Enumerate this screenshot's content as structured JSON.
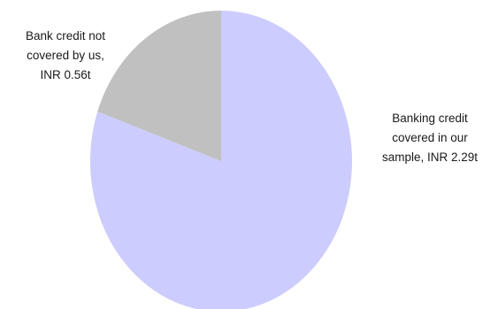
{
  "chart_data": {
    "type": "pie",
    "title": "",
    "start_angle_deg": 0,
    "direction": "clockwise",
    "slices": [
      {
        "label_lines": [
          "Banking credit",
          "covered in our",
          "sample, INR 2.29t"
        ],
        "value": 2.29,
        "unit": "INR t",
        "color": "#ccccfe"
      },
      {
        "label_lines": [
          "Bank credit not",
          "covered by us,",
          "INR 0.56t"
        ],
        "value": 0.56,
        "unit": "INR t",
        "color": "#c0c0c0"
      }
    ]
  }
}
